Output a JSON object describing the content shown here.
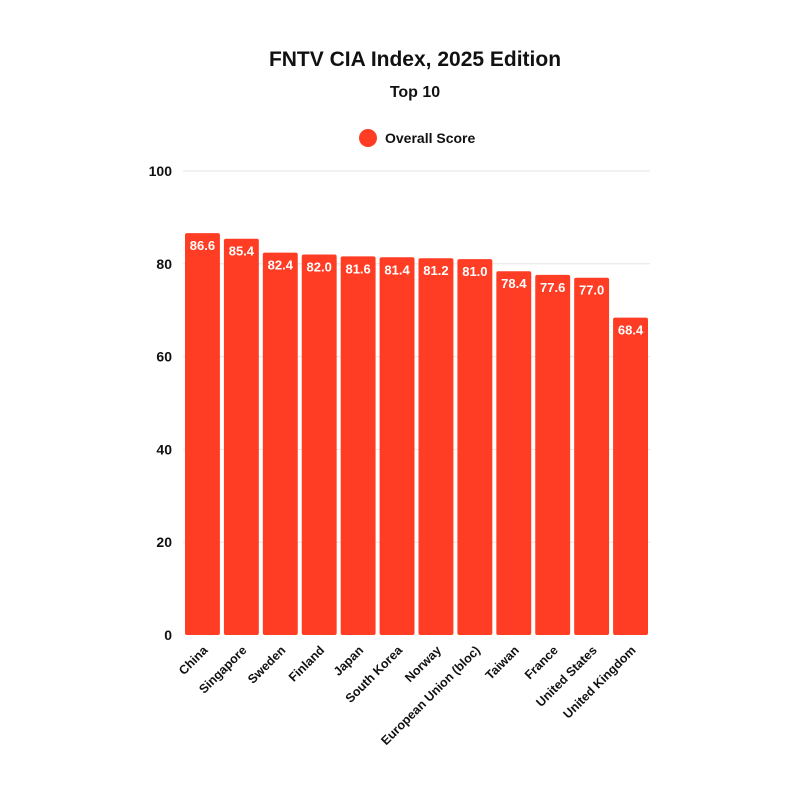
{
  "chart_data": {
    "type": "bar",
    "title": "FNTV CIA Index, 2025 Edition",
    "subtitle": "Top 10",
    "categories": [
      "China",
      "Singapore",
      "Sweden",
      "Finland",
      "Japan",
      "South Korea",
      "Norway",
      "European Union (bloc)",
      "Taiwan",
      "France",
      "United States",
      "United Kingdom"
    ],
    "series": [
      {
        "name": "Overall Score",
        "color": "#ff3d24",
        "values": [
          86.6,
          85.4,
          82.4,
          82.0,
          81.6,
          81.4,
          81.2,
          81.0,
          78.4,
          77.6,
          77.0,
          68.4
        ],
        "labels": [
          "86.6",
          "85.4",
          "82.4",
          "82.0",
          "81.6",
          "81.4",
          "81.2",
          "81.0",
          "78.4",
          "77.6",
          "77.0",
          "68.4"
        ]
      }
    ],
    "xlabel": "",
    "ylabel": "",
    "ylim": [
      0,
      100
    ],
    "yticks": [
      0,
      20,
      40,
      60,
      80,
      100
    ],
    "ytick_labels": [
      "0",
      "20",
      "40",
      "60",
      "80",
      "100"
    ],
    "grid": true,
    "legend_position": "top-center"
  }
}
